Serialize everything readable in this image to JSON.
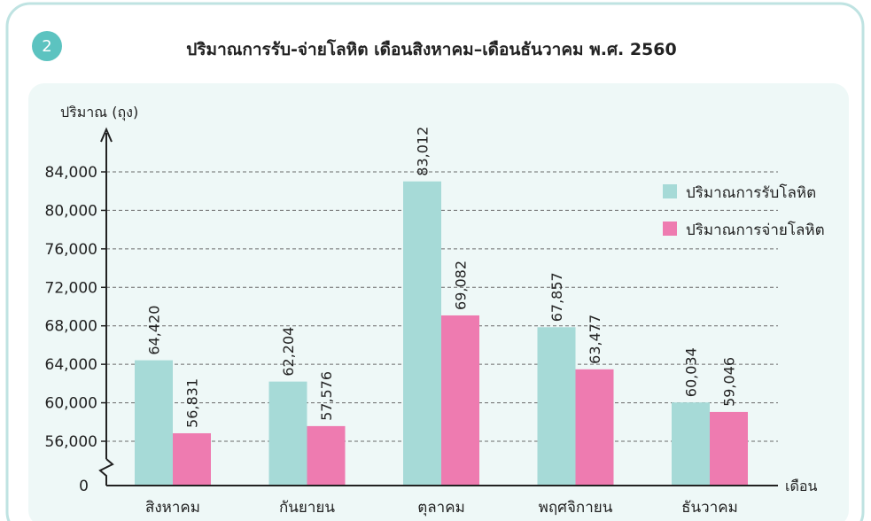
{
  "figure_number": "2",
  "colors": {
    "received": "#a6dad7",
    "dispensed": "#ee7bb0",
    "badge": "#5cc3c0",
    "frame": "#bfe3e2",
    "panel": "#eef8f7"
  },
  "chart_data": {
    "type": "bar",
    "title": "ปริมาณการรับ-จ่ายโลหิต เดือนสิงหาคม–เดือนธันวาคม พ.ศ. 2560",
    "ylabel": "ปริมาณ (ถุง)",
    "xlabel": "เดือน",
    "categories": [
      "สิงหาคม",
      "กันยายน",
      "ตุลาคม",
      "พฤศจิกายน",
      "ธันวาคม"
    ],
    "series": [
      {
        "name": "ปริมาณการรับโลหิต",
        "values": [
          64420,
          62204,
          83012,
          67857,
          60034
        ],
        "labels": [
          "64,420",
          "62,204",
          "83,012",
          "67,857",
          "60,034"
        ]
      },
      {
        "name": "ปริมาณการจ่ายโลหิต",
        "values": [
          56831,
          57576,
          69082,
          63477,
          59046
        ],
        "labels": [
          "56,831",
          "57,576",
          "69,082",
          "63,477",
          "59,046"
        ]
      }
    ],
    "y_ticks": [
      56000,
      60000,
      64000,
      68000,
      72000,
      76000,
      80000,
      84000
    ],
    "y_tick_labels": [
      "56,000",
      "60,000",
      "64,000",
      "68,000",
      "72,000",
      "76,000",
      "80,000",
      "84,000"
    ],
    "y_zero_label": "0",
    "ylim": [
      52000,
      84000
    ],
    "axis_break": true,
    "grid": true,
    "legend_position": "top-right"
  }
}
